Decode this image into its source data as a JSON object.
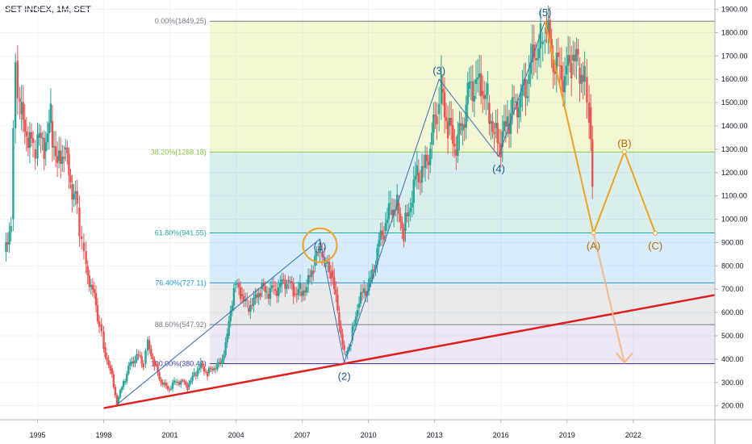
{
  "chart_data": {
    "type": "candlestick",
    "title": "SET INDEX, 1M, SET",
    "ylim": [
      140,
      1940
    ],
    "xlim": [
      1993.3,
      2025.7
    ],
    "y_ticks": [
      "200.00",
      "300.00",
      "400.00",
      "500.00",
      "600.00",
      "700.00",
      "800.00",
      "900.00",
      "1000.00",
      "1100.00",
      "1200.00",
      "1300.00",
      "1400.00",
      "1500.00",
      "1600.00",
      "1700.00",
      "1800.00",
      "1900.00"
    ],
    "x_ticks": [
      "1995",
      "1998",
      "2001",
      "2004",
      "2007",
      "2010",
      "2013",
      "2016",
      "2019",
      "2022"
    ],
    "fib_levels": [
      {
        "label": "0.00%(1849.25)",
        "value": 1849.25,
        "color": "#787b86"
      },
      {
        "label": "38.20%(1288.18)",
        "value": 1288.18,
        "color": "#8bc34a"
      },
      {
        "label": "61.80%(941.55)",
        "value": 941.55,
        "color": "#26a69a"
      },
      {
        "label": "76.40%(727.11)",
        "value": 727.11,
        "color": "#2196f3"
      },
      {
        "label": "88.60%(547.92)",
        "value": 547.92,
        "color": "#787b86"
      },
      {
        "label": "100.00%(380.48)",
        "value": 380.48,
        "color": "#3f3ca8"
      }
    ],
    "fib_start_x": 2002.8,
    "wave_labels": [
      {
        "label": "(1)",
        "x": 2007.8,
        "y": 930,
        "color": "#1e5b8c"
      },
      {
        "label": "(2)",
        "x": 2008.9,
        "y": 380,
        "color": "#1e5b8c"
      },
      {
        "label": "(3)",
        "x": 2013.2,
        "y": 1600,
        "color": "#1e5b8c"
      },
      {
        "label": "(4)",
        "x": 2015.9,
        "y": 1270,
        "color": "#1e5b8c"
      },
      {
        "label": "(5)",
        "x": 2018.0,
        "y": 1850,
        "color": "#1e5b8c"
      },
      {
        "label": "(A)",
        "x": 2020.2,
        "y": 940,
        "color": "#b76e00"
      },
      {
        "label": "(B)",
        "x": 2021.6,
        "y": 1290,
        "color": "#b76e00"
      },
      {
        "label": "(C)",
        "x": 2023.0,
        "y": 940,
        "color": "#b76e00"
      }
    ],
    "impulse_path": [
      [
        1998.6,
        205
      ],
      [
        2007.8,
        915
      ],
      [
        2008.9,
        385
      ],
      [
        2013.2,
        1600
      ],
      [
        2015.9,
        1270
      ],
      [
        2018.0,
        1850
      ]
    ],
    "correction_path": [
      [
        2018.0,
        1850
      ],
      [
        2020.2,
        940
      ],
      [
        2021.6,
        1290
      ],
      [
        2023.0,
        940
      ]
    ],
    "projection": [
      [
        2020.2,
        940
      ],
      [
        2021.6,
        385
      ]
    ],
    "trendline": [
      [
        1998.0,
        190
      ],
      [
        2025.7,
        675
      ]
    ],
    "monthly_close": [
      [
        1993.5,
        860
      ],
      [
        1993.8,
        1000
      ],
      [
        1994.0,
        1680
      ],
      [
        1994.2,
        1450
      ],
      [
        1994.5,
        1350
      ],
      [
        1994.8,
        1300
      ],
      [
        1995.0,
        1350
      ],
      [
        1995.3,
        1290
      ],
      [
        1995.6,
        1420
      ],
      [
        1995.9,
        1250
      ],
      [
        1996.2,
        1300
      ],
      [
        1996.5,
        1150
      ],
      [
        1996.8,
        1050
      ],
      [
        1997.0,
        900
      ],
      [
        1997.2,
        800
      ],
      [
        1997.5,
        700
      ],
      [
        1997.8,
        550
      ],
      [
        1998.0,
        450
      ],
      [
        1998.3,
        360
      ],
      [
        1998.6,
        210
      ],
      [
        1998.9,
        300
      ],
      [
        1999.2,
        380
      ],
      [
        1999.5,
        420
      ],
      [
        1999.8,
        380
      ],
      [
        2000.0,
        480
      ],
      [
        2000.3,
        380
      ],
      [
        2000.6,
        300
      ],
      [
        2000.9,
        270
      ],
      [
        2001.2,
        300
      ],
      [
        2001.5,
        310
      ],
      [
        2001.8,
        280
      ],
      [
        2002.1,
        330
      ],
      [
        2002.4,
        380
      ],
      [
        2002.7,
        340
      ],
      [
        2003.0,
        360
      ],
      [
        2003.3,
        380
      ],
      [
        2003.6,
        500
      ],
      [
        2003.9,
        720
      ],
      [
        2004.2,
        680
      ],
      [
        2004.5,
        620
      ],
      [
        2004.8,
        660
      ],
      [
        2005.1,
        700
      ],
      [
        2005.4,
        680
      ],
      [
        2005.7,
        700
      ],
      [
        2006.0,
        720
      ],
      [
        2006.3,
        740
      ],
      [
        2006.6,
        680
      ],
      [
        2006.9,
        690
      ],
      [
        2007.2,
        720
      ],
      [
        2007.5,
        800
      ],
      [
        2007.8,
        860
      ],
      [
        2008.0,
        810
      ],
      [
        2008.3,
        780
      ],
      [
        2008.6,
        600
      ],
      [
        2008.9,
        420
      ],
      [
        2009.2,
        480
      ],
      [
        2009.5,
        620
      ],
      [
        2009.8,
        690
      ],
      [
        2010.1,
        740
      ],
      [
        2010.4,
        880
      ],
      [
        2010.7,
        950
      ],
      [
        2011.0,
        1040
      ],
      [
        2011.3,
        1070
      ],
      [
        2011.6,
        950
      ],
      [
        2011.9,
        1050
      ],
      [
        2012.2,
        1200
      ],
      [
        2012.5,
        1220
      ],
      [
        2012.8,
        1320
      ],
      [
        2013.1,
        1450
      ],
      [
        2013.3,
        1560
      ],
      [
        2013.6,
        1400
      ],
      [
        2013.9,
        1300
      ],
      [
        2014.2,
        1380
      ],
      [
        2014.5,
        1560
      ],
      [
        2014.8,
        1580
      ],
      [
        2015.1,
        1550
      ],
      [
        2015.4,
        1500
      ],
      [
        2015.7,
        1390
      ],
      [
        2016.0,
        1310
      ],
      [
        2016.3,
        1410
      ],
      [
        2016.6,
        1500
      ],
      [
        2016.9,
        1530
      ],
      [
        2017.2,
        1580
      ],
      [
        2017.5,
        1690
      ],
      [
        2017.8,
        1750
      ],
      [
        2018.0,
        1830
      ],
      [
        2018.3,
        1700
      ],
      [
        2018.6,
        1660
      ],
      [
        2018.9,
        1620
      ],
      [
        2019.2,
        1680
      ],
      [
        2019.5,
        1650
      ],
      [
        2019.8,
        1610
      ],
      [
        2020.0,
        1480
      ],
      [
        2020.15,
        1130
      ]
    ]
  }
}
